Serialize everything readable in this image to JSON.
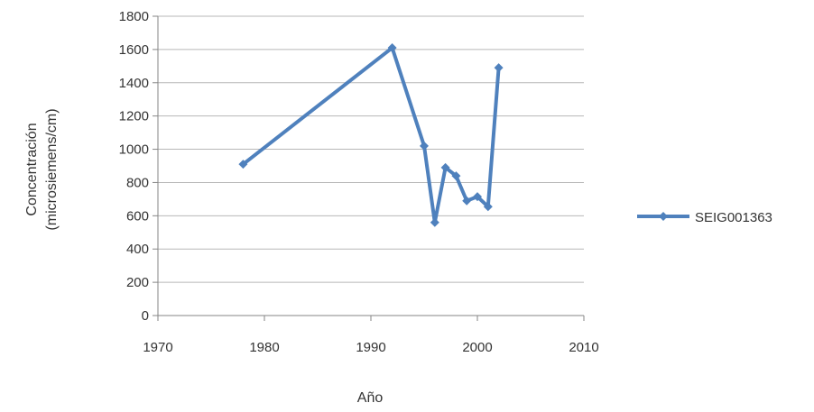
{
  "chart_data": {
    "type": "line",
    "title": "",
    "xlabel": "Año",
    "ylabel_lines": [
      "Concentración",
      "(microsiemens/cm)"
    ],
    "xlim": [
      1970,
      2010
    ],
    "ylim": [
      0,
      1800
    ],
    "x_ticks": [
      1970,
      1980,
      1990,
      2000,
      2010
    ],
    "y_ticks": [
      0,
      200,
      400,
      600,
      800,
      1000,
      1200,
      1400,
      1600,
      1800
    ],
    "grid": "horizontal",
    "legend_position": "right",
    "series": [
      {
        "name": "SEIG001363",
        "color": "#4f81bd",
        "x": [
          1978,
          1992,
          1995,
          1996,
          1997,
          1998,
          1999,
          2000,
          2001,
          2002
        ],
        "y": [
          910,
          1610,
          1020,
          560,
          890,
          840,
          690,
          715,
          655,
          1490
        ]
      }
    ]
  }
}
